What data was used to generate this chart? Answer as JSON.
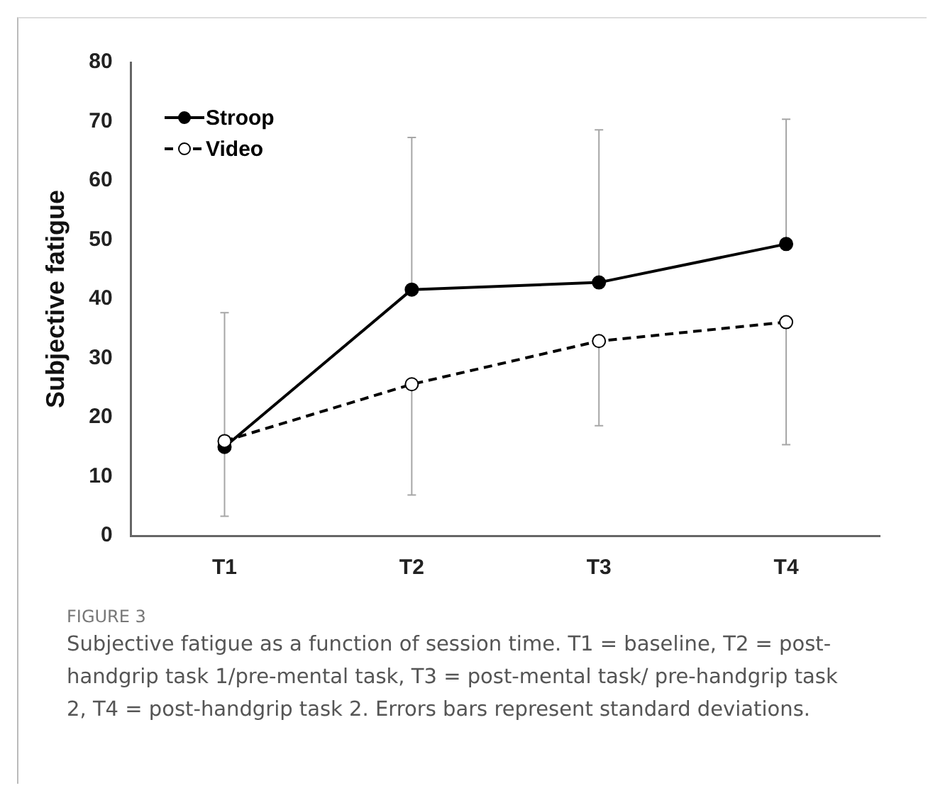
{
  "chart_data": {
    "type": "line",
    "ylabel": "Subjective fatigue",
    "categories": [
      "T1",
      "T2",
      "T3",
      "T4"
    ],
    "ylim": [
      0,
      80
    ],
    "yticks": [
      0,
      10,
      20,
      30,
      40,
      50,
      60,
      70,
      80
    ],
    "grid": false,
    "legend": "top left",
    "marker": "circle",
    "series": [
      {
        "name": "Stroop",
        "color": "#000000",
        "line_style": "solid",
        "values": [
          15,
          41.6,
          42.8,
          49.3
        ],
        "errors": [
          [
            15,
            37.7
          ],
          [
            41.6,
            67.3
          ],
          [
            42.8,
            68.6
          ],
          [
            49.3,
            70.4
          ]
        ]
      },
      {
        "name": "Video",
        "color": "#000000",
        "line_style": "dashed",
        "values": [
          16,
          25.6,
          32.9,
          36.1
        ],
        "errors": [
          [
            3.3,
            16
          ],
          [
            6.9,
            25.6
          ],
          [
            18.6,
            32.9
          ],
          [
            15.4,
            36.1
          ]
        ]
      }
    ],
    "annotations": [
      "FIGURE 3",
      "Subjective fatigue as a function of session time. T1 = baseline, T2 = post-handgrip task 1/pre-mental task, T3 = post-mental task/ pre-handgrip task 2, T4 = post-handgrip task 2. Errors bars represent standard deviations."
    ]
  }
}
